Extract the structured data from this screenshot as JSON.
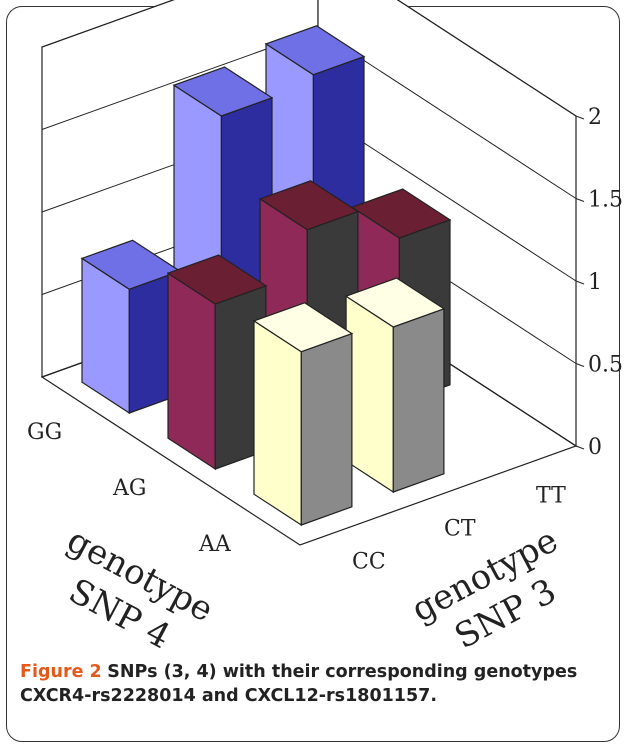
{
  "caption": {
    "label": "Figure 2",
    "text": "SNPs (3, 4) with their corresponding genotypes CXCR4-rs2228014 and CXCL12-rs1801157."
  },
  "colors": {
    "AA": {
      "front": "#ffffcc",
      "side": "#8a8a8a",
      "top": "#ffffe6"
    },
    "AG": {
      "front": "#8e2958",
      "side": "#3a3a3a",
      "top": "#6a1f33"
    },
    "GG": {
      "front": "#9999ff",
      "side": "#2d2da0",
      "top": "#7070e6"
    }
  },
  "chart_data": {
    "type": "bar3d",
    "x_axis": {
      "title": "genotype SNP 4",
      "categories": [
        "AA",
        "AG",
        "GG"
      ]
    },
    "y_axis": {
      "title": "genotype SNP 3",
      "categories": [
        "CC",
        "CT",
        "TT"
      ]
    },
    "z_axis": {
      "ticks": [
        "0",
        "0.5",
        "1",
        "1.5",
        "2"
      ],
      "range": [
        0,
        2
      ]
    },
    "grid": true,
    "bars": [
      {
        "snp4": "AA",
        "snp3": "CC",
        "value": 1.05
      },
      {
        "snp4": "AA",
        "snp3": "CT",
        "value": 1.0
      },
      {
        "snp4": "AG",
        "snp3": "CC",
        "value": 1.0
      },
      {
        "snp4": "AG",
        "snp3": "CT",
        "value": 1.25
      },
      {
        "snp4": "AG",
        "snp3": "TT",
        "value": 1.0
      },
      {
        "snp4": "GG",
        "snp3": "CC",
        "value": 0.75
      },
      {
        "snp4": "GG",
        "snp3": "CT",
        "value": 1.6
      },
      {
        "snp4": "GG",
        "snp3": "TT",
        "value": 1.65
      }
    ]
  }
}
